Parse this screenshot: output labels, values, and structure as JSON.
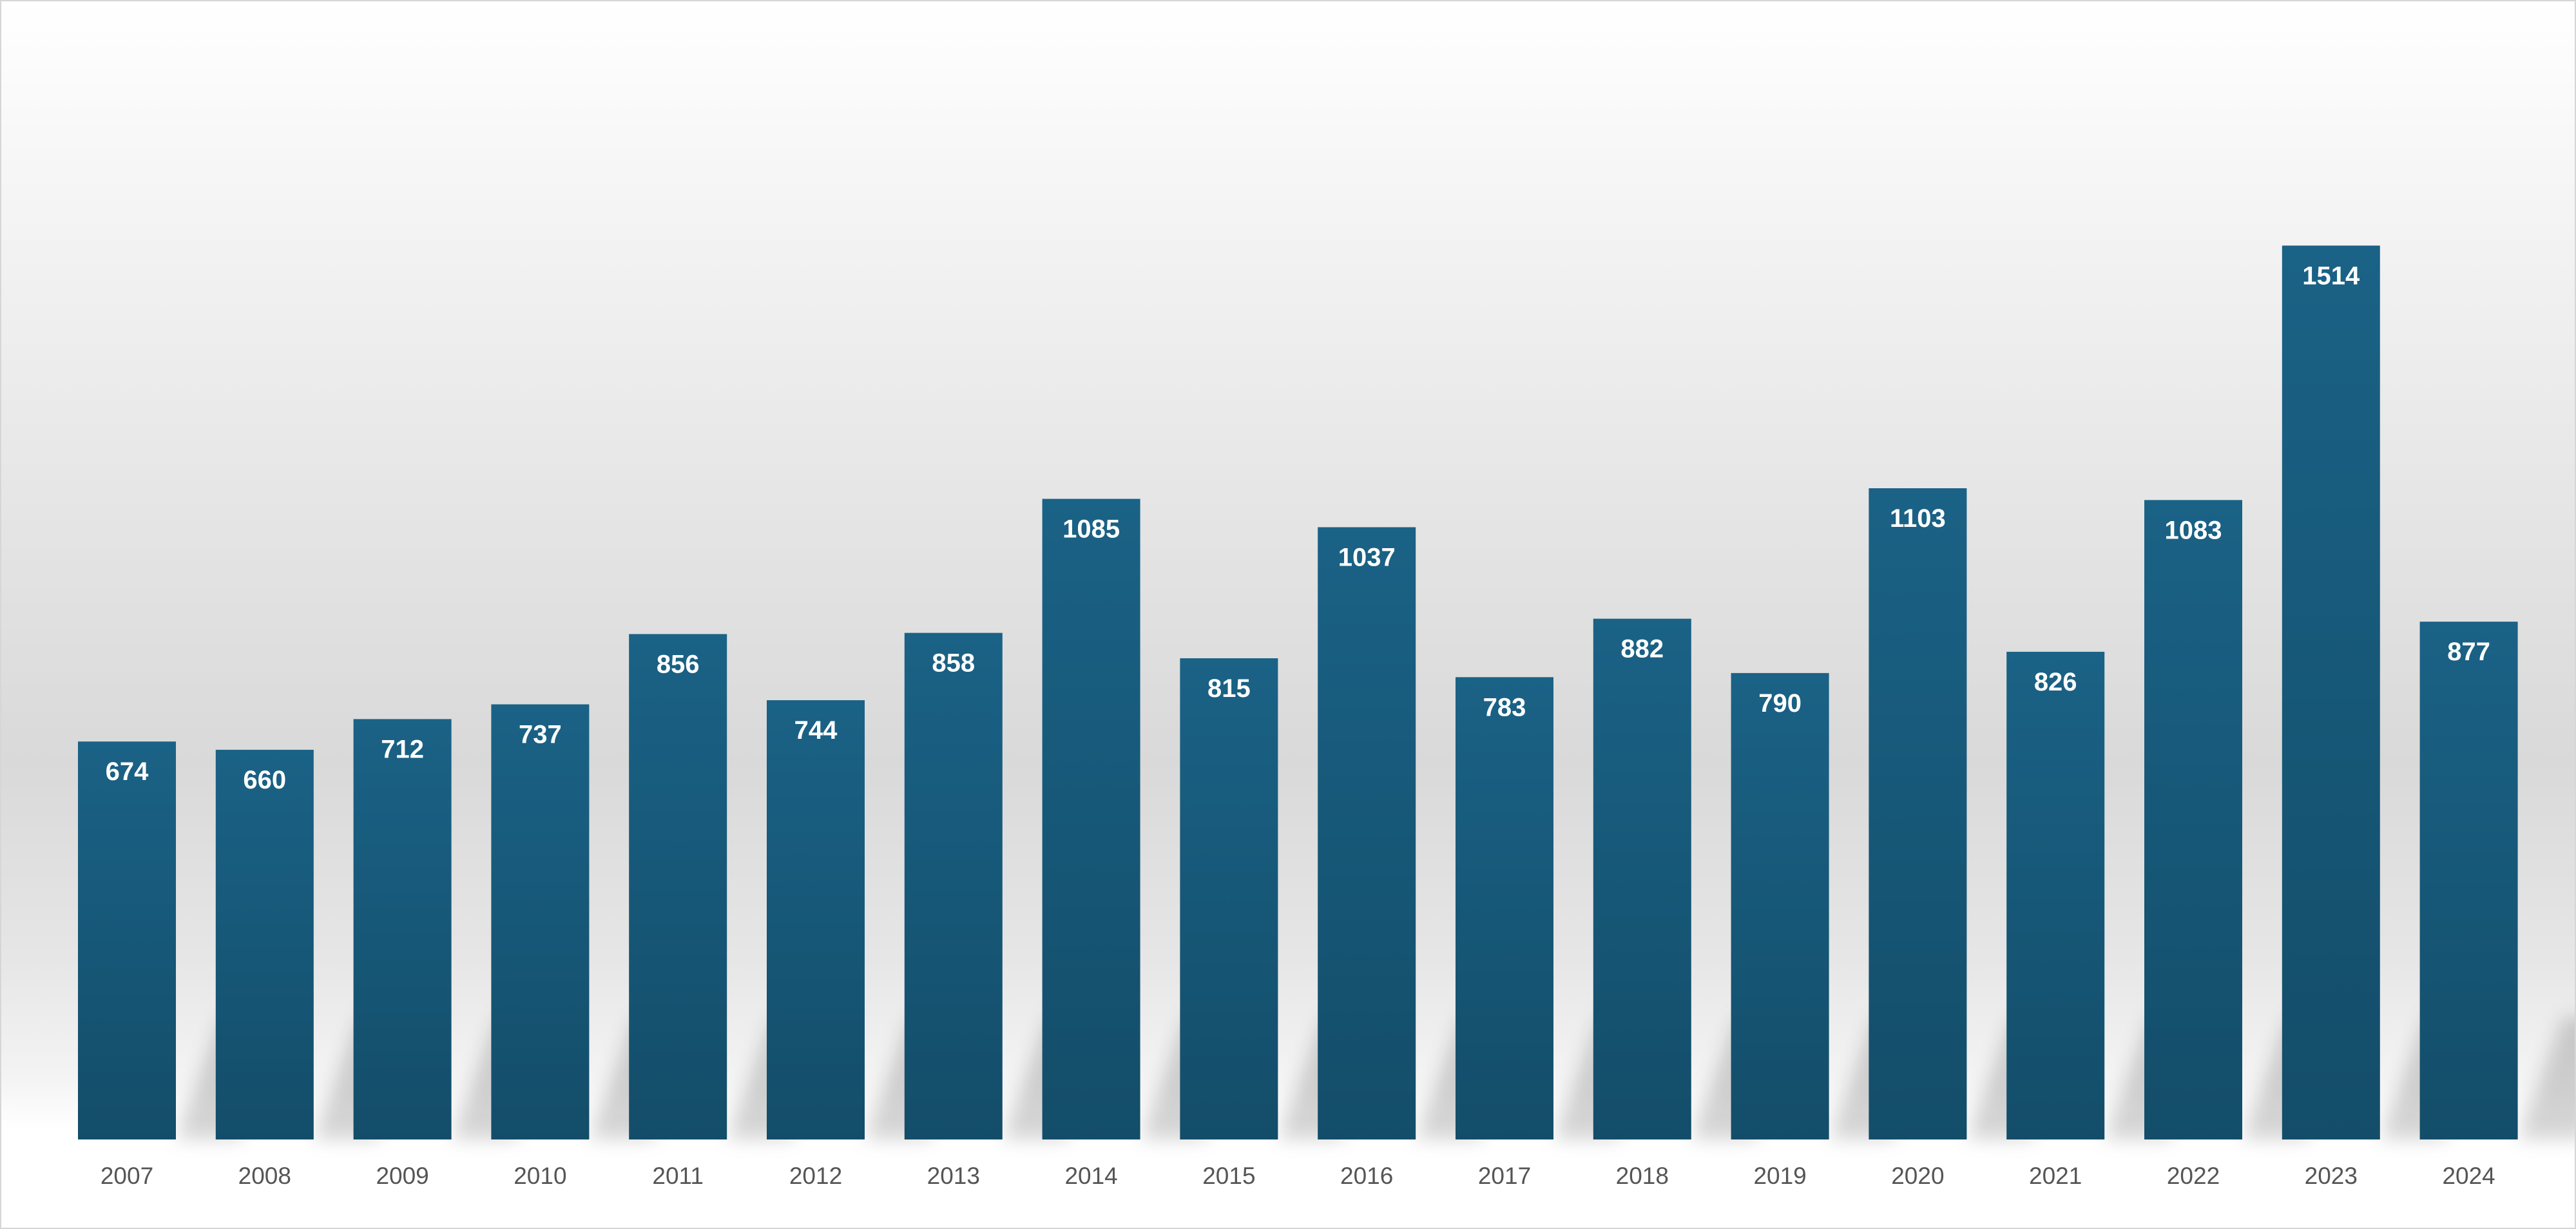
{
  "chart_data": {
    "type": "bar",
    "title": "",
    "xlabel": "",
    "ylabel": "",
    "categories": [
      "2007",
      "2008",
      "2009",
      "2010",
      "2011",
      "2012",
      "2013",
      "2014",
      "2015",
      "2016",
      "2017",
      "2018",
      "2019",
      "2020",
      "2021",
      "2022",
      "2023",
      "2024"
    ],
    "values": [
      674,
      660,
      712,
      737,
      856,
      744,
      858,
      1085,
      815,
      1037,
      783,
      882,
      790,
      1103,
      826,
      1083,
      1514,
      877
    ],
    "ylim": [
      0,
      1520
    ],
    "grid": false,
    "legend": "none",
    "data_labels": true,
    "colors": {
      "bar_top": "#1a6286",
      "bar_bottom": "#134d69",
      "label_text": "#ffffff",
      "tick_text": "#555555"
    }
  }
}
